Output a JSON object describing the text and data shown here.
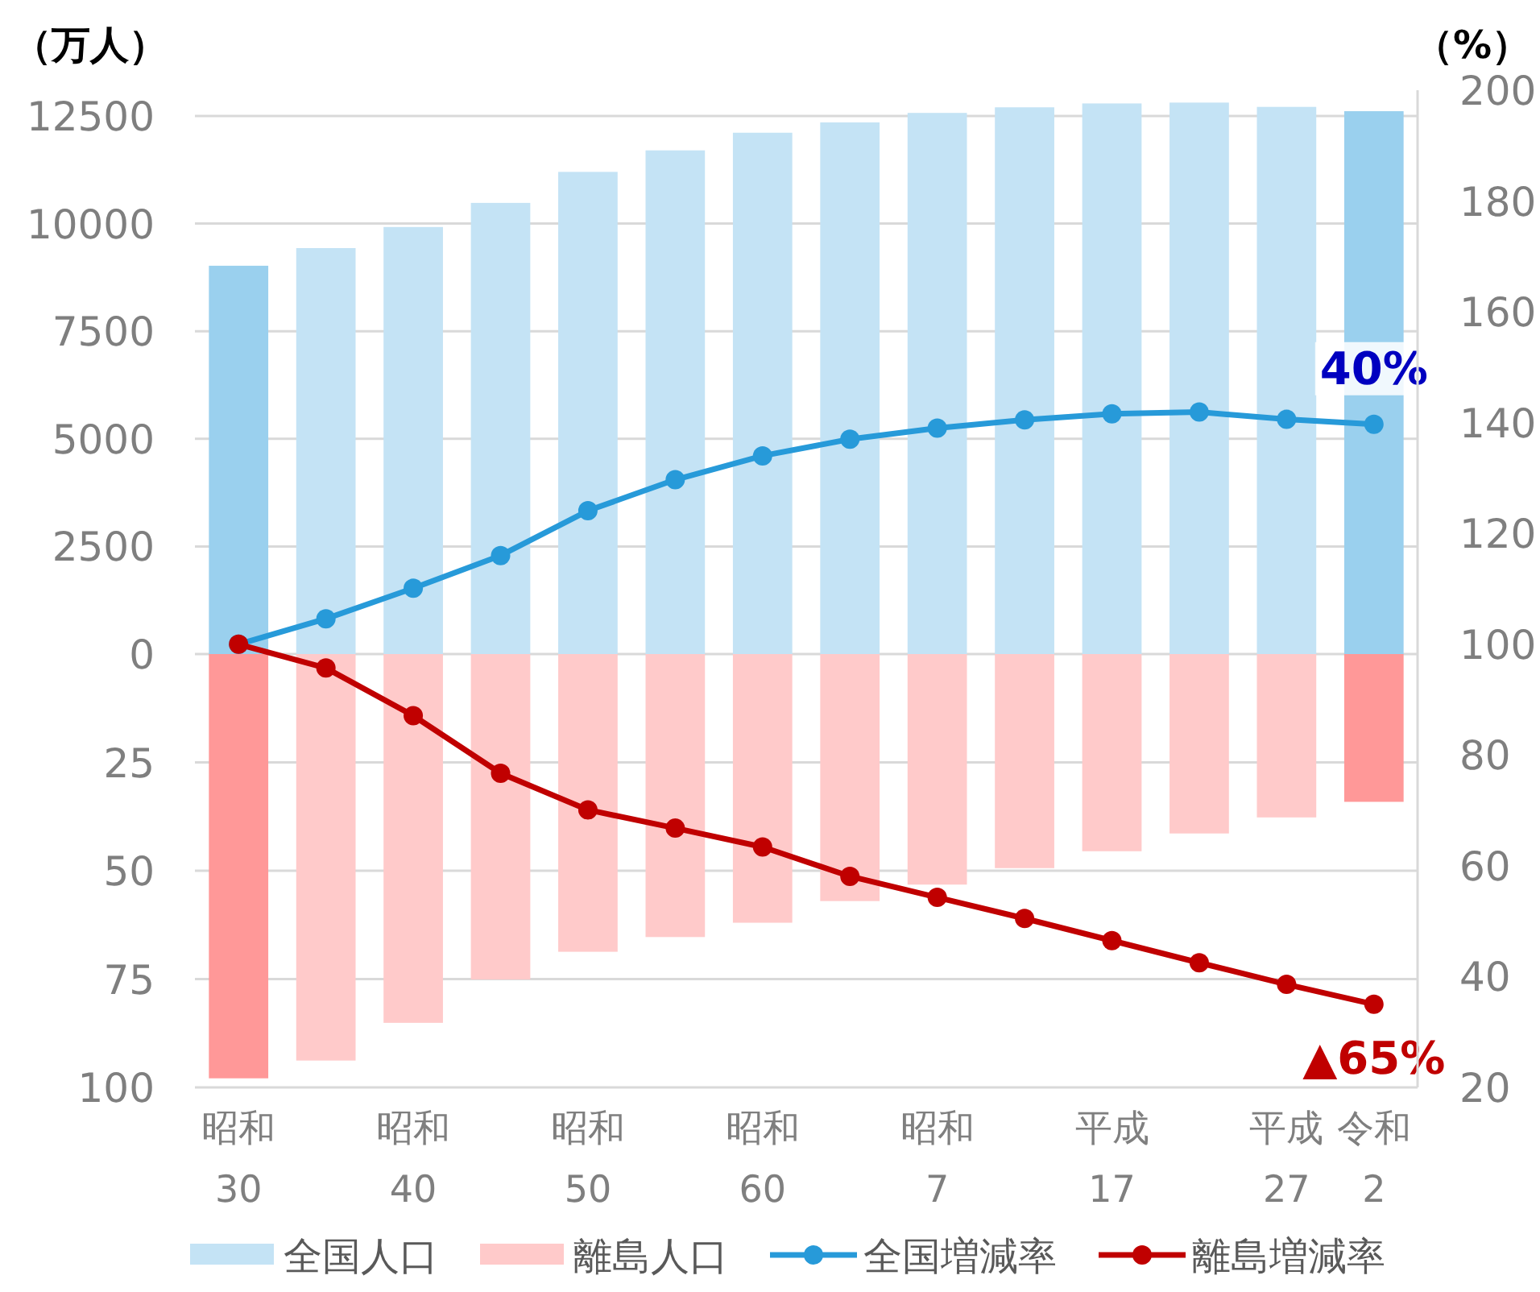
{
  "chart_data": [
    {
      "type": "bar",
      "ylabel": "（万人）",
      "categories": [
        null,
        null,
        null,
        null,
        null,
        null,
        null,
        null,
        null,
        null,
        null,
        null,
        null,
        null
      ],
      "series": [
        {
          "name": "全国人口",
          "color": "#c4e3f5",
          "colors": [
            "#9ad0ee",
            "#c4e3f5",
            "#c4e3f5",
            "#c4e3f5",
            "#c4e3f5",
            "#c4e3f5",
            "#c4e3f5",
            "#c4e3f5",
            "#c4e3f5",
            "#c4e3f5",
            "#c4e3f5",
            "#c4e3f5",
            "#c4e3f5",
            "#9ad0ee"
          ],
          "values": [
            9020,
            9430,
            9920,
            10480,
            11200,
            11700,
            12110,
            12350,
            12570,
            12700,
            12790,
            12810,
            12710,
            12610
          ]
        }
      ],
      "ylim": [
        0,
        13000
      ],
      "yticks": [
        0,
        2500,
        5000,
        7500,
        10000,
        12500
      ],
      "grid": "y",
      "tick_labels": "y",
      "legend": "bottom"
    },
    {
      "type": "bar",
      "categories": [
        null,
        null,
        null,
        null,
        null,
        null,
        null,
        null,
        null,
        null,
        null,
        null,
        null,
        null
      ],
      "series": [
        {
          "name": "離島人口",
          "color": "#ffcaca",
          "colors": [
            "#ff9898",
            "#ffcaca",
            "#ffcaca",
            "#ffcaca",
            "#ffcaca",
            "#ffcaca",
            "#ffcaca",
            "#ffcaca",
            "#ffcaca",
            "#ffcaca",
            "#ffcaca",
            "#ffcaca",
            "#ffcaca",
            "#ff9898"
          ],
          "values": [
            97.9,
            93.8,
            85.1,
            75.1,
            68.7,
            65.3,
            62.0,
            57.0,
            53.2,
            49.4,
            45.5,
            41.4,
            37.7,
            34.1
          ]
        }
      ],
      "ylim": [
        100,
        0
      ],
      "yticks": [
        25,
        50,
        75,
        100
      ],
      "grid": "y",
      "tick_labels": "y",
      "legend": "bottom"
    },
    {
      "type": "line",
      "y2label": "（%）",
      "categories": [
        "昭和30",
        null,
        "昭和40",
        null,
        "昭和50",
        null,
        "昭和60",
        null,
        "昭和7",
        null,
        "平成17",
        null,
        "平成27",
        "令和2"
      ],
      "series": [
        {
          "name": "全国増減率",
          "color": "#279ad9",
          "axis": "y2",
          "values": [
            100,
            104.6,
            110.1,
            116.0,
            124.1,
            129.7,
            134.0,
            137.0,
            139.0,
            140.5,
            141.6,
            141.9,
            140.6,
            139.7
          ]
        },
        {
          "name": "離島増減率",
          "color": "#c00000",
          "axis": "y2",
          "values": [
            100,
            95.7,
            87.1,
            76.7,
            70.1,
            66.8,
            63.4,
            58.1,
            54.3,
            50.5,
            46.5,
            42.5,
            38.6,
            35
          ]
        }
      ],
      "y2lim": [
        20,
        200
      ],
      "y2ticks": [
        20,
        40,
        60,
        80,
        100,
        120,
        140,
        160,
        180,
        200
      ],
      "marker": "circle",
      "line_style": "solid",
      "legend": "bottom",
      "annotations": [
        "40%",
        "▲65%"
      ]
    }
  ]
}
